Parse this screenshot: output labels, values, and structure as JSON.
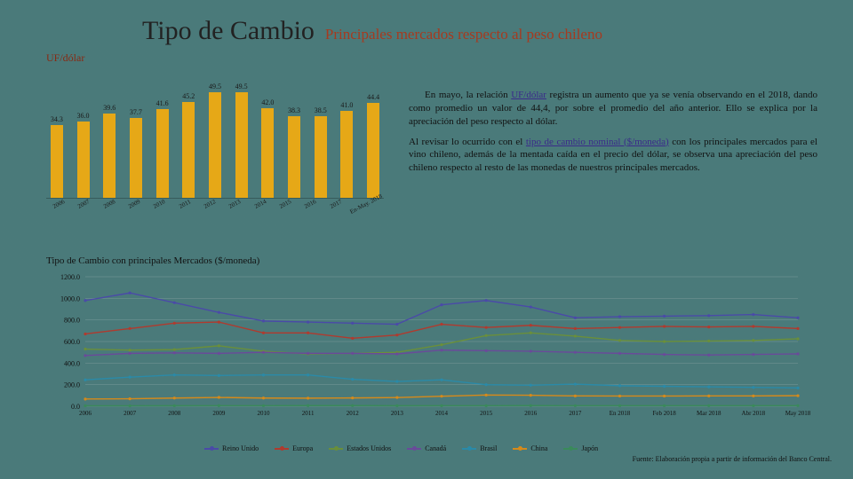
{
  "header": {
    "title": "Tipo de Cambio",
    "subtitle": "Principales mercados respecto al peso chileno",
    "axis_label": "UF/dólar"
  },
  "bar_chart": {
    "type": "bar",
    "bar_color": "#e6a817",
    "ymax": 50,
    "categories": [
      "2006",
      "2007",
      "2008",
      "2009",
      "2010",
      "2011",
      "2012",
      "2013",
      "2014",
      "2015",
      "2016",
      "2017",
      "En-May. 2018"
    ],
    "values": [
      34.3,
      36.0,
      39.6,
      37.7,
      41.6,
      45.2,
      49.5,
      49.5,
      42.0,
      38.3,
      38.5,
      41.0,
      44.4
    ]
  },
  "body": {
    "p1_pre": "En mayo, la relación ",
    "p1_link": "UF/dólar",
    "p1_post": " registra un aumento que ya se venía observando en el 2018, dando como promedio un valor de 44,4, por sobre el promedio del año anterior. Ello se explica por la apreciación del peso respecto al dólar.",
    "p2_pre": "Al revisar lo ocurrido con el ",
    "p2_link": "tipo de cambio nominal ($/moneda)",
    "p2_post": " con los principales mercados para el vino chileno, además de la mentada caída en el precio del dólar, se observa una apreciación del peso chileno respecto al resto de las monedas de nuestros principales mercados."
  },
  "line_chart": {
    "type": "line",
    "title": "Tipo de Cambio con principales Mercados ($/moneda)",
    "ylim": [
      0,
      1200
    ],
    "ytick_step": 200,
    "x_labels": [
      "2006",
      "2007",
      "2008",
      "2009",
      "2010",
      "2011",
      "2012",
      "2013",
      "2014",
      "2015",
      "2016",
      "2017",
      "En 2018",
      "Feb 2018",
      "Mar 2018",
      "Abr 2018",
      "May 2018"
    ],
    "grid_color": "#7a9a9a",
    "series": [
      {
        "name": "Reino Unido",
        "color": "#4a4aa8",
        "values": [
          980,
          1050,
          960,
          870,
          790,
          780,
          770,
          760,
          940,
          980,
          920,
          820,
          830,
          835,
          840,
          850,
          820
        ]
      },
      {
        "name": "Europa",
        "color": "#b03a2e",
        "values": [
          670,
          720,
          770,
          780,
          680,
          680,
          630,
          660,
          760,
          730,
          750,
          720,
          730,
          740,
          735,
          740,
          720
        ]
      },
      {
        "name": "Estados Unidos",
        "color": "#6a8f3a",
        "values": [
          530,
          520,
          525,
          560,
          510,
          485,
          490,
          500,
          570,
          655,
          680,
          650,
          610,
          600,
          605,
          610,
          625
        ]
      },
      {
        "name": "Canadá",
        "color": "#6a4a9a",
        "values": [
          470,
          490,
          495,
          490,
          500,
          490,
          490,
          485,
          520,
          515,
          510,
          500,
          490,
          480,
          475,
          480,
          485
        ]
      },
      {
        "name": "Brasil",
        "color": "#2a8aa8",
        "values": [
          245,
          270,
          290,
          285,
          290,
          290,
          250,
          230,
          245,
          200,
          195,
          205,
          190,
          185,
          180,
          175,
          170
        ]
      },
      {
        "name": "China",
        "color": "#d68a1a",
        "values": [
          67,
          69,
          76,
          82,
          76,
          75,
          77,
          81,
          93,
          104,
          102,
          96,
          95,
          95,
          96,
          96,
          98
        ]
      },
      {
        "name": "Japón",
        "color": "#3a8a5a",
        "values": [
          4.6,
          4.4,
          5.1,
          6.0,
          5.8,
          6.1,
          6.1,
          5.1,
          5.4,
          5.4,
          6.2,
          5.8,
          5.5,
          5.6,
          5.7,
          5.6,
          5.7
        ]
      }
    ]
  },
  "source": "Fuente: Elaboración propia a partir de información del Banco Central."
}
